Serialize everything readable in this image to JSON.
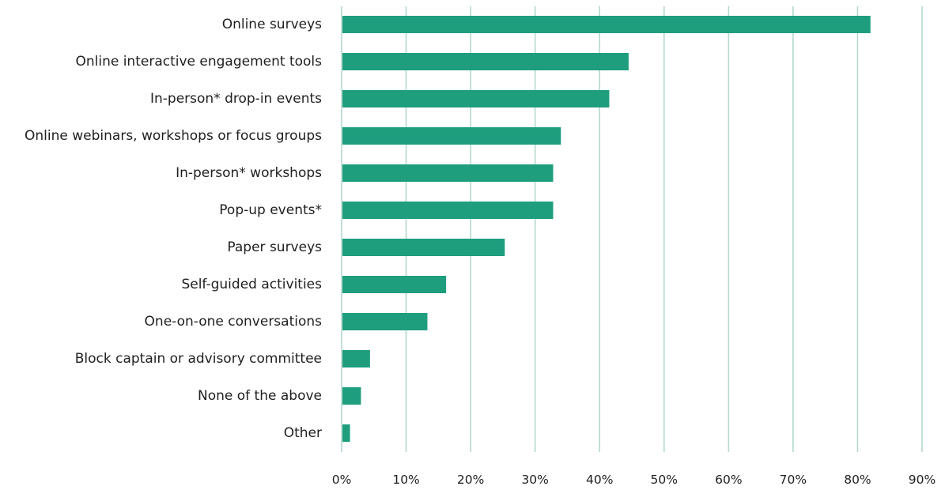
{
  "chart_data": {
    "type": "bar",
    "orientation": "horizontal",
    "categories": [
      "Online surveys",
      "Online interactive engagement tools",
      "In-person* drop-in events",
      "Online webinars, workshops or focus groups",
      "In-person* workshops",
      "Pop-up events*",
      "Paper surveys",
      "Self-guided activities",
      "One-on-one conversations",
      "Block captain or advisory committee",
      "None of the above",
      "Other"
    ],
    "values": [
      82,
      44.5,
      41.5,
      34,
      32.8,
      32.8,
      25.3,
      16.2,
      13.3,
      4.4,
      3,
      1.3
    ],
    "xlim": [
      0,
      90
    ],
    "xticks": [
      0,
      10,
      20,
      30,
      40,
      50,
      60,
      70,
      80,
      90
    ],
    "xtick_labels": [
      "0%",
      "10%",
      "20%",
      "30%",
      "40%",
      "50%",
      "60%",
      "70%",
      "80%",
      "90%"
    ],
    "title": "",
    "xlabel": "",
    "ylabel": "",
    "grid": "vertical",
    "legend": "none",
    "colors": {
      "bar": "#1f9e7e",
      "grid": "#b3d9cc",
      "text": "#1f1f1f"
    }
  }
}
